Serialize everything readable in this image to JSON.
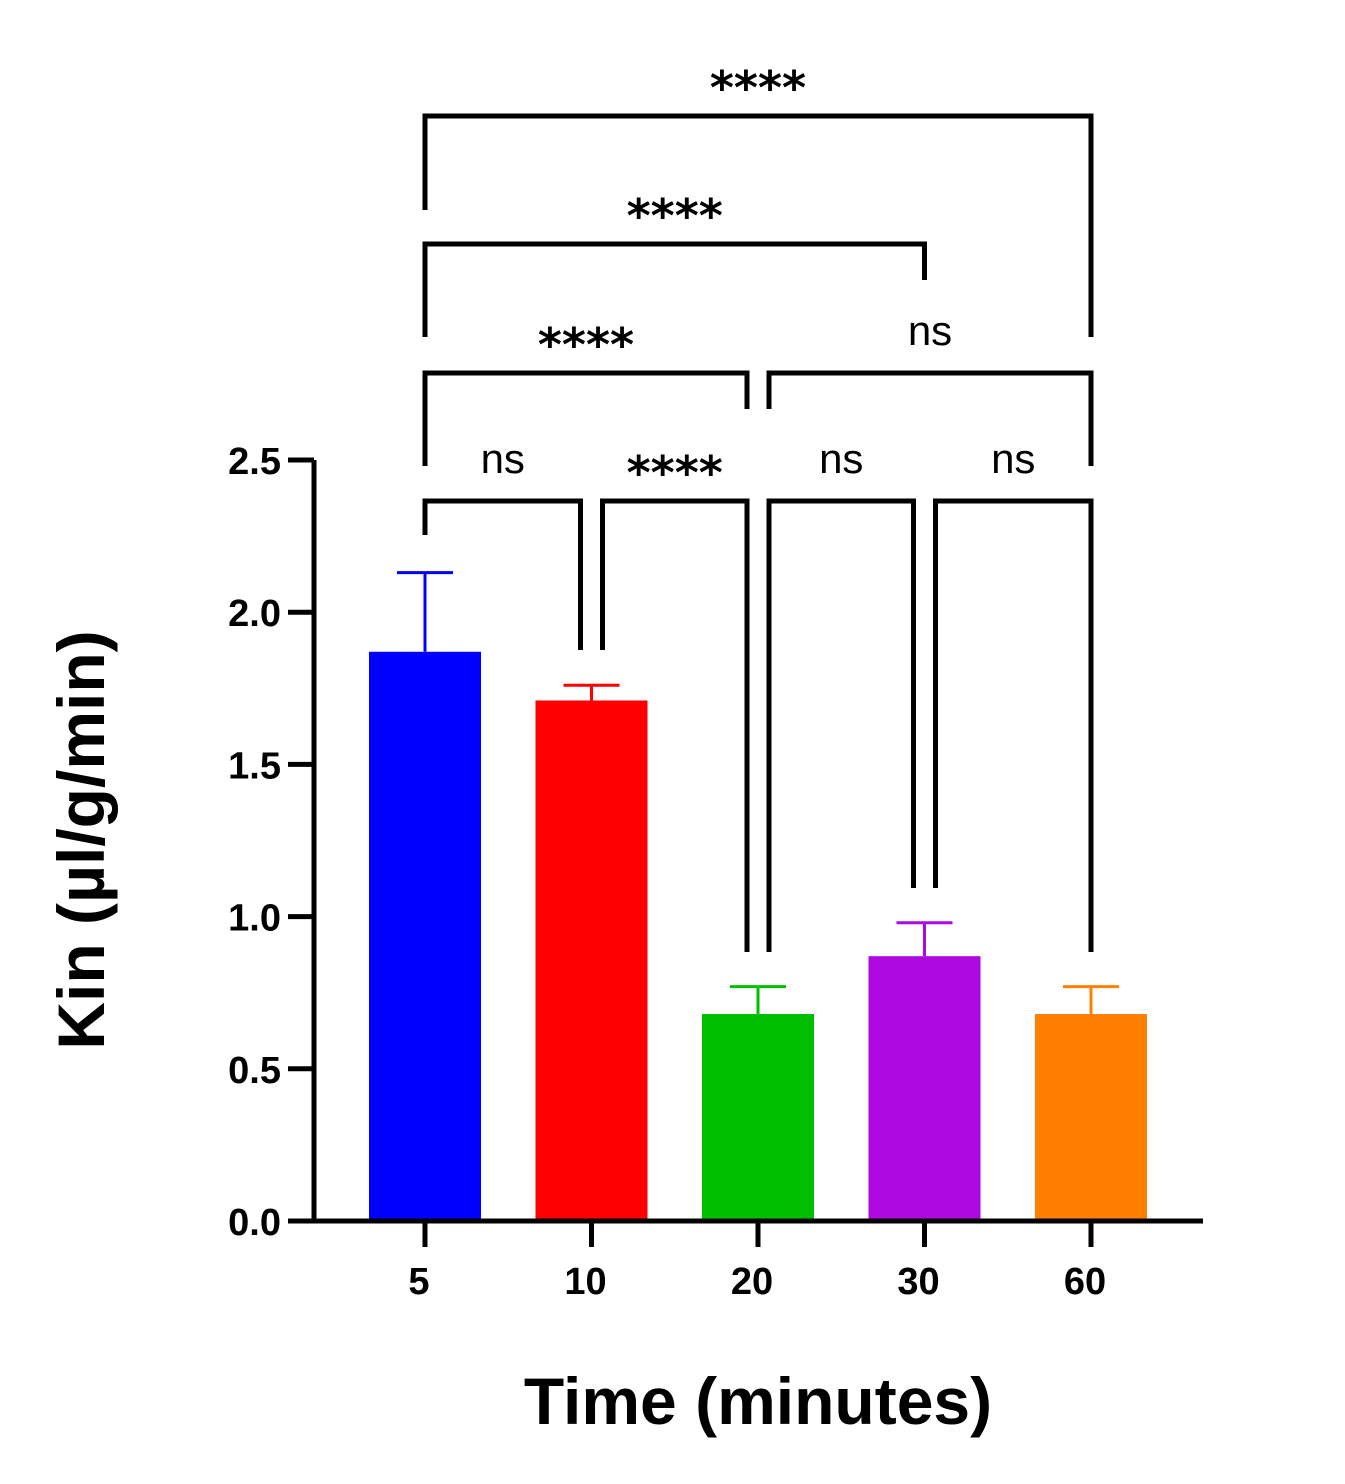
{
  "chart_data": {
    "type": "bar",
    "categories": [
      "5",
      "10",
      "20",
      "30",
      "60"
    ],
    "values": [
      1.87,
      1.71,
      0.68,
      0.87,
      0.68
    ],
    "errors": [
      0.26,
      0.05,
      0.09,
      0.11,
      0.09
    ],
    "colors": [
      "#0000ff",
      "#ff0000",
      "#00bf00",
      "#ae0ae0",
      "#ff8000"
    ],
    "xlabel": "Time (minutes)",
    "ylabel": "Kin (µl/g/min)",
    "ylim": [
      0,
      2.5
    ],
    "yticks": [
      "0.0",
      "0.5",
      "1.0",
      "1.5",
      "2.0",
      "2.5"
    ],
    "grid": false,
    "legend": "none",
    "significance": [
      {
        "from": "5",
        "to": "10",
        "label": "ns"
      },
      {
        "from": "10",
        "to": "20",
        "label": "****"
      },
      {
        "from": "20",
        "to": "30",
        "label": "ns"
      },
      {
        "from": "30",
        "to": "60",
        "label": "ns"
      },
      {
        "from": "5",
        "to": "20",
        "label": "****"
      },
      {
        "from": "20",
        "to": "60",
        "label": "ns"
      },
      {
        "from": "5",
        "to": "30",
        "label": "****"
      },
      {
        "from": "5",
        "to": "60",
        "label": "****"
      }
    ]
  }
}
